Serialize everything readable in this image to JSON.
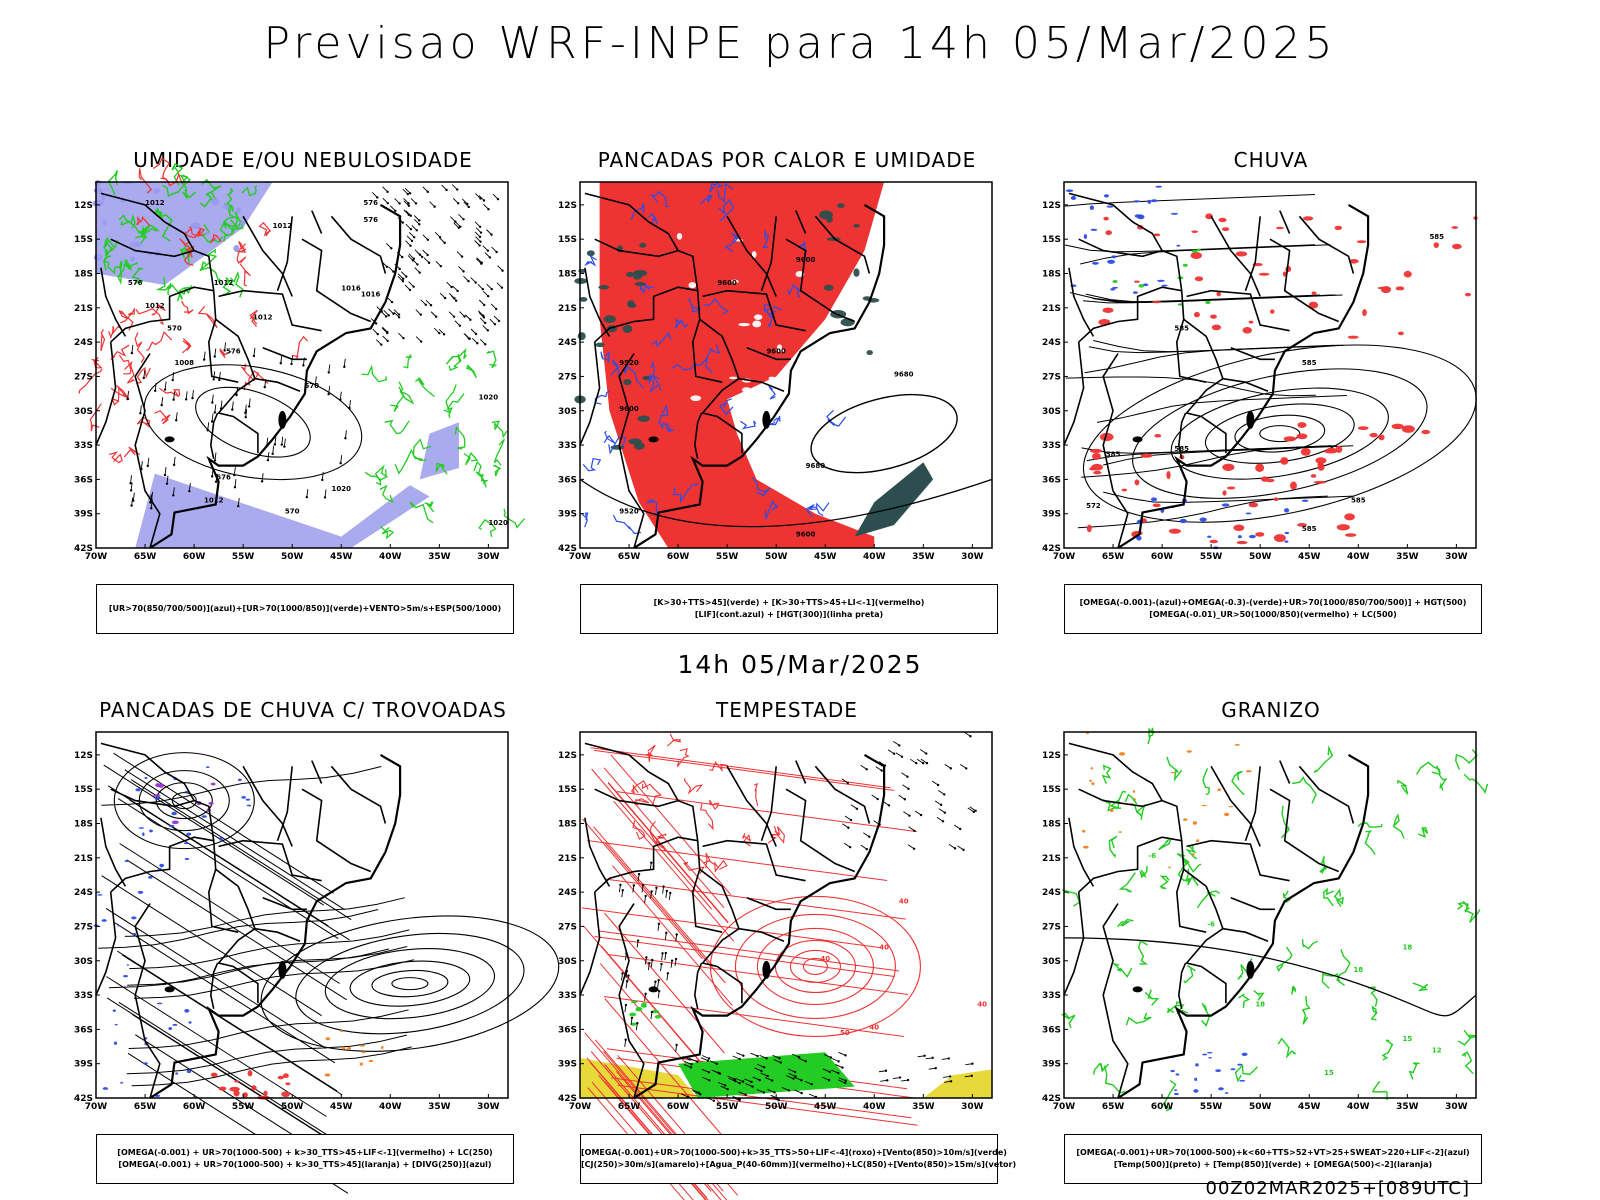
{
  "title": "Previsao WRF-INPE  para 14h 05/Mar/2025",
  "mid_title": "14h 05/Mar/2025",
  "footer": "00Z02MAR2025+[089UTC]",
  "axes": {
    "lat_labels": [
      "12S",
      "15S",
      "18S",
      "21S",
      "24S",
      "27S",
      "30S",
      "33S",
      "36S",
      "39S",
      "42S"
    ],
    "lon_labels": [
      "70W",
      "65W",
      "60W",
      "55W",
      "50W",
      "45W",
      "40W",
      "35W",
      "30W"
    ]
  },
  "colors": {
    "blue": "#2a4de8",
    "green": "#22cc22",
    "red": "#ee3333",
    "lavender": "#aaaaee",
    "dark_teal": "#2d4e4e",
    "yellow": "#e8d93a",
    "orange": "#f08020",
    "purple": "#9933cc"
  },
  "panels": [
    {
      "id": "umidade",
      "title": "UMIDADE E/OU NEBULOSIDADE",
      "legend": [
        "[UR>70(850/700/500)](azul)+[UR>70(1000/850)](verde)+VENTO>5m/s+ESP(500/1000)"
      ],
      "contour_labels": [
        "1012",
        "1012",
        "1012",
        "1012",
        "1016",
        "1016",
        "1012",
        "1008",
        "1020",
        "1020",
        "1020",
        "1012",
        "576",
        "576",
        "576",
        "570",
        "570",
        "576",
        "576",
        "570"
      ]
    },
    {
      "id": "pancadas",
      "title": "PANCADAS POR CALOR E UMIDADE",
      "legend": [
        "[K>30+TTS>45](verde) + [K>30+TTS>45+LI<-1](vermelho)",
        "[LIF](cont.azul) + [HGT(300)](linha preta)"
      ],
      "contour_labels": [
        "9600",
        "9600",
        "9600",
        "9680",
        "9680",
        "9600",
        "9520",
        "9520",
        "9600"
      ]
    },
    {
      "id": "chuva",
      "title": "CHUVA",
      "legend": [
        "[OMEGA(-0.001)-(azul)+OMEGA(-0.3)-(verde)+UR>70(1000/850/700/500)] + HGT(500)",
        "[OMEGA(-0.01)_UR>50(1000/850)(vermelho) + LC(500)"
      ],
      "contour_labels": [
        "585",
        "585",
        "585",
        "585",
        "585",
        "585",
        "585",
        "572"
      ]
    },
    {
      "id": "trovoadas",
      "title": "PANCADAS DE CHUVA C/ TROVOADAS",
      "legend": [
        "[OMEGA(-0.001) + UR>70(1000-500) + k>30_TTS>45+LIF<-1](vermelho) + LC(250)",
        "[OMEGA(-0.001) + UR>70(1000-500) + k>30_TTS>45](laranja) + [DIVG(250)](azul)"
      ],
      "contour_labels": []
    },
    {
      "id": "tempestade",
      "title": "TEMPESTADE",
      "legend": [
        "[OMEGA(-0.001)+UR>70(1000-500)+k>35_TTS>50+LIF<-4](roxo)+[Vento(850)>10m/s](verde)",
        "[CJ(250)>30m/s](amarelo)+[Agua_P(40-60mm)](vermelho)+LC(850)+[Vento(850)>15m/s](vetor)"
      ],
      "contour_labels": [
        "40",
        "40",
        "40",
        "50",
        "40",
        "40"
      ]
    },
    {
      "id": "granizo",
      "title": "GRANIZO",
      "legend": [
        "[OMEGA(-0.001)+UR>70(1000-500)+k<60+TTS>52+VT>25+SWEAT>220+LIF<-2](azul)",
        "[Temp(500)](preto) + [Temp(850)](verde) + [OMEGA(500)<-2](laranja)"
      ],
      "contour_labels": [
        "-6",
        "-6",
        "18",
        "18",
        "18",
        "15",
        "15",
        "12"
      ]
    }
  ]
}
